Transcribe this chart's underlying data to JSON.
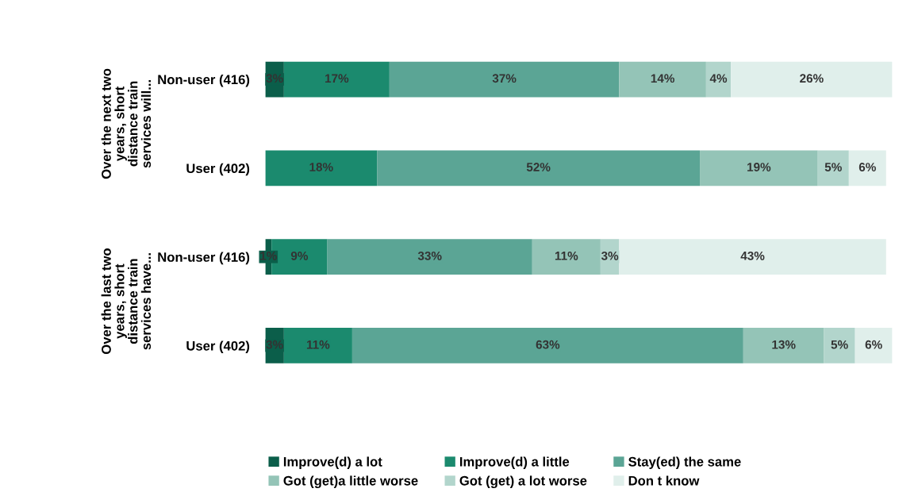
{
  "chart_data": {
    "type": "bar",
    "orientation": "horizontal",
    "stacked": true,
    "legend": "bottom",
    "grid": false,
    "tick_labels": "y",
    "categories": [
      "Non-user (416)",
      "User (402)",
      "Non-user (416)",
      "User (402)"
    ],
    "annotations": [
      "Over the next two\nyears, short\ndistance train\nservices will...",
      "Over the last two\nyears, short\ndistance train\nservices have..."
    ],
    "series": [
      {
        "name": "Improve(d) a lot",
        "color": "#0b5e4a",
        "values": [
          3,
          0,
          1,
          3
        ],
        "value_labels": [
          "3%",
          null,
          "1%",
          "3%"
        ]
      },
      {
        "name": "Improve(d) a little",
        "color": "#1b8a6e",
        "values": [
          17,
          18,
          9,
          11
        ],
        "value_labels": [
          "17%",
          "18%",
          "9%",
          "11%"
        ]
      },
      {
        "name": "Stay(ed) the same",
        "color": "#5ba595",
        "values": [
          37,
          52,
          33,
          63
        ],
        "value_labels": [
          "37%",
          "52%",
          "33%",
          "63%"
        ]
      },
      {
        "name": "Got (get)a little worse",
        "color": "#94c4b7",
        "values": [
          14,
          19,
          11,
          13
        ],
        "value_labels": [
          "14%",
          "19%",
          "11%",
          "13%"
        ]
      },
      {
        "name": "Got (get) a lot worse",
        "color": "#b2d5cc",
        "values": [
          4,
          5,
          3,
          5
        ],
        "value_labels": [
          "4%",
          "5%",
          "3%",
          "5%"
        ]
      },
      {
        "name": "Don t know",
        "color": "#e0efeb",
        "values": [
          26,
          6,
          43,
          6
        ],
        "value_labels": [
          "26%",
          "6%",
          "43%",
          "6%"
        ]
      }
    ]
  }
}
